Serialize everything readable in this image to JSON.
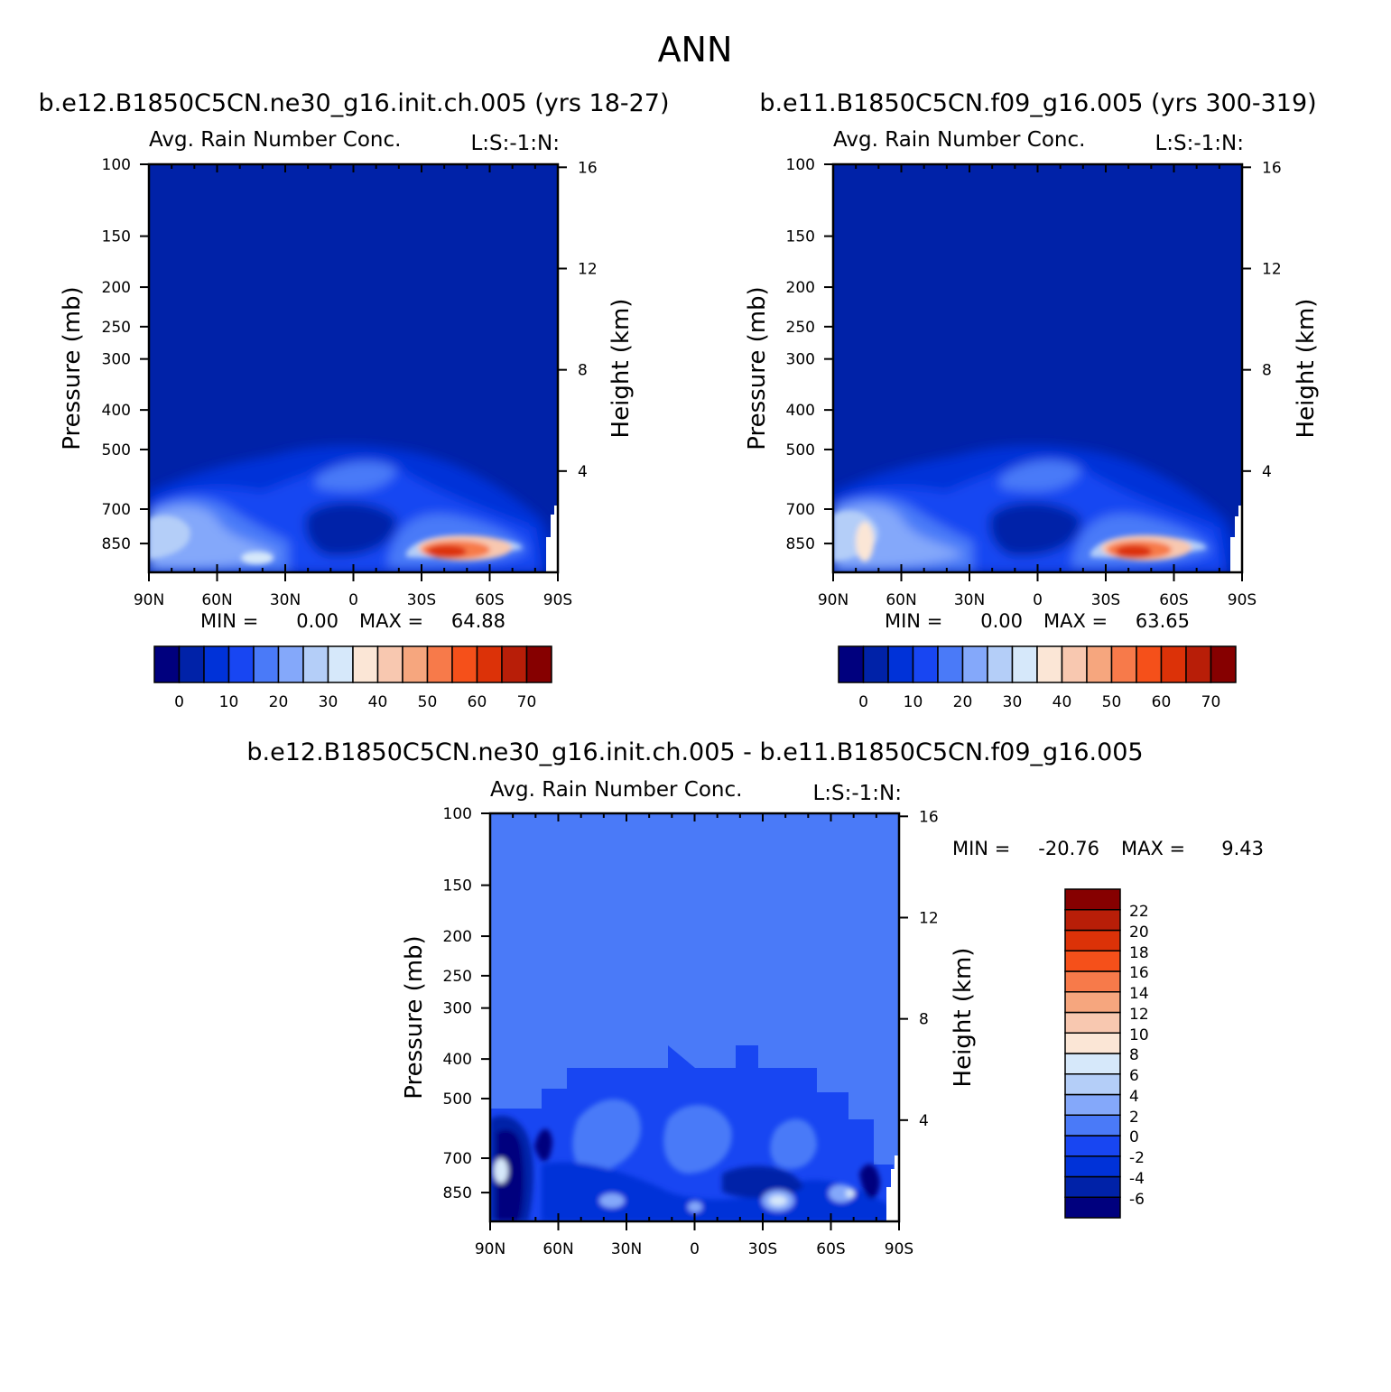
{
  "main_title": "ANN",
  "palettes": {
    "abs": [
      "#00007e",
      "#0022a8",
      "#0032d8",
      "#1846f2",
      "#4a7af8",
      "#84a8fa",
      "#b4cef8",
      "#d6e8fa",
      "#fbe6d6",
      "#f8c8b0",
      "#f6a67e",
      "#f77a4a",
      "#f5501a",
      "#dc3208",
      "#b81e08",
      "#860000"
    ],
    "diff": [
      "#00007e",
      "#0022a8",
      "#0032d8",
      "#1846f2",
      "#4a7af8",
      "#84a8fa",
      "#b4cef8",
      "#d6e8fa",
      "#fbe6d6",
      "#f8c8b0",
      "#f6a67e",
      "#f77a4a",
      "#f5501a",
      "#dc3208",
      "#b81e08",
      "#860000"
    ]
  },
  "panels": [
    {
      "run_title": "b.e12.B1850C5CN.ne30_g16.init.ch.005 (yrs 18-27)",
      "var_title": "Avg. Rain Number Conc.",
      "units": "L:S:-1:N:",
      "ylabel": "Pressure (mb)",
      "y2label": "Height (km)",
      "stats": {
        "min_label": "MIN =",
        "min": "0.00",
        "max_label": "MAX =",
        "max": "64.88"
      },
      "colorbar_labels": [
        "0",
        "10",
        "20",
        "30",
        "40",
        "50",
        "60",
        "70"
      ]
    },
    {
      "run_title": "b.e11.B1850C5CN.f09_g16.005 (yrs 300-319)",
      "var_title": "Avg. Rain Number Conc.",
      "units": "L:S:-1:N:",
      "ylabel": "Pressure (mb)",
      "y2label": "Height (km)",
      "stats": {
        "min_label": "MIN =",
        "min": "0.00",
        "max_label": "MAX =",
        "max": "63.65"
      },
      "colorbar_labels": [
        "0",
        "10",
        "20",
        "30",
        "40",
        "50",
        "60",
        "70"
      ]
    },
    {
      "run_title": "b.e12.B1850C5CN.ne30_g16.init.ch.005 - b.e11.B1850C5CN.f09_g16.005",
      "var_title": "Avg. Rain Number Conc.",
      "units": "L:S:-1:N:",
      "ylabel": "Pressure (mb)",
      "y2label": "Height (km)",
      "stats": {
        "min_label": "MIN =",
        "min": "-20.76",
        "max_label": "MAX =",
        "max": "9.43"
      },
      "colorbar_labels": [
        "22",
        "20",
        "18",
        "16",
        "14",
        "12",
        "10",
        "8",
        "6",
        "4",
        "2",
        "0",
        "-2",
        "-4",
        "-6"
      ]
    }
  ],
  "chart_data": [
    {
      "type": "heatmap",
      "title": "Avg. Rain Number Conc.",
      "subtitle": "b.e12.B1850C5CN.ne30_g16.init.ch.005 (yrs 18-27)",
      "xlabel": "",
      "ylabel": "Pressure (mb)",
      "y2label": "Height (km)",
      "x_ticks": [
        "90N",
        "60N",
        "30N",
        "0",
        "30S",
        "60S",
        "90S"
      ],
      "y_ticks": [
        "100",
        "150",
        "200",
        "250",
        "300",
        "400",
        "500",
        "700",
        "850"
      ],
      "y2_ticks": [
        "16",
        "12",
        "8",
        "4"
      ],
      "ylim": [
        100,
        1000
      ],
      "y_scale": "log",
      "contour_levels": [
        0,
        5,
        10,
        15,
        20,
        25,
        30,
        35,
        40,
        45,
        50,
        55,
        60,
        65,
        70
      ],
      "min": 0.0,
      "max": 64.88
    },
    {
      "type": "heatmap",
      "title": "Avg. Rain Number Conc.",
      "subtitle": "b.e11.B1850C5CN.f09_g16.005 (yrs 300-319)",
      "xlabel": "",
      "ylabel": "Pressure (mb)",
      "y2label": "Height (km)",
      "x_ticks": [
        "90N",
        "60N",
        "30N",
        "0",
        "30S",
        "60S",
        "90S"
      ],
      "y_ticks": [
        "100",
        "150",
        "200",
        "250",
        "300",
        "400",
        "500",
        "700",
        "850"
      ],
      "y2_ticks": [
        "16",
        "12",
        "8",
        "4"
      ],
      "ylim": [
        100,
        1000
      ],
      "y_scale": "log",
      "contour_levels": [
        0,
        5,
        10,
        15,
        20,
        25,
        30,
        35,
        40,
        45,
        50,
        55,
        60,
        65,
        70
      ],
      "min": 0.0,
      "max": 63.65
    },
    {
      "type": "heatmap",
      "title": "Avg. Rain Number Conc.",
      "subtitle": "b.e12.B1850C5CN.ne30_g16.init.ch.005 - b.e11.B1850C5CN.f09_g16.005",
      "xlabel": "",
      "ylabel": "Pressure (mb)",
      "y2label": "Height (km)",
      "x_ticks": [
        "90N",
        "60N",
        "30N",
        "0",
        "30S",
        "60S",
        "90S"
      ],
      "y_ticks": [
        "100",
        "150",
        "200",
        "250",
        "300",
        "400",
        "500",
        "700",
        "850"
      ],
      "y2_ticks": [
        "16",
        "12",
        "8",
        "4"
      ],
      "ylim": [
        100,
        1000
      ],
      "y_scale": "log",
      "contour_levels": [
        -6,
        -4,
        -2,
        0,
        2,
        4,
        6,
        8,
        10,
        12,
        14,
        16,
        18,
        20,
        22
      ],
      "min": -20.76,
      "max": 9.43
    }
  ]
}
